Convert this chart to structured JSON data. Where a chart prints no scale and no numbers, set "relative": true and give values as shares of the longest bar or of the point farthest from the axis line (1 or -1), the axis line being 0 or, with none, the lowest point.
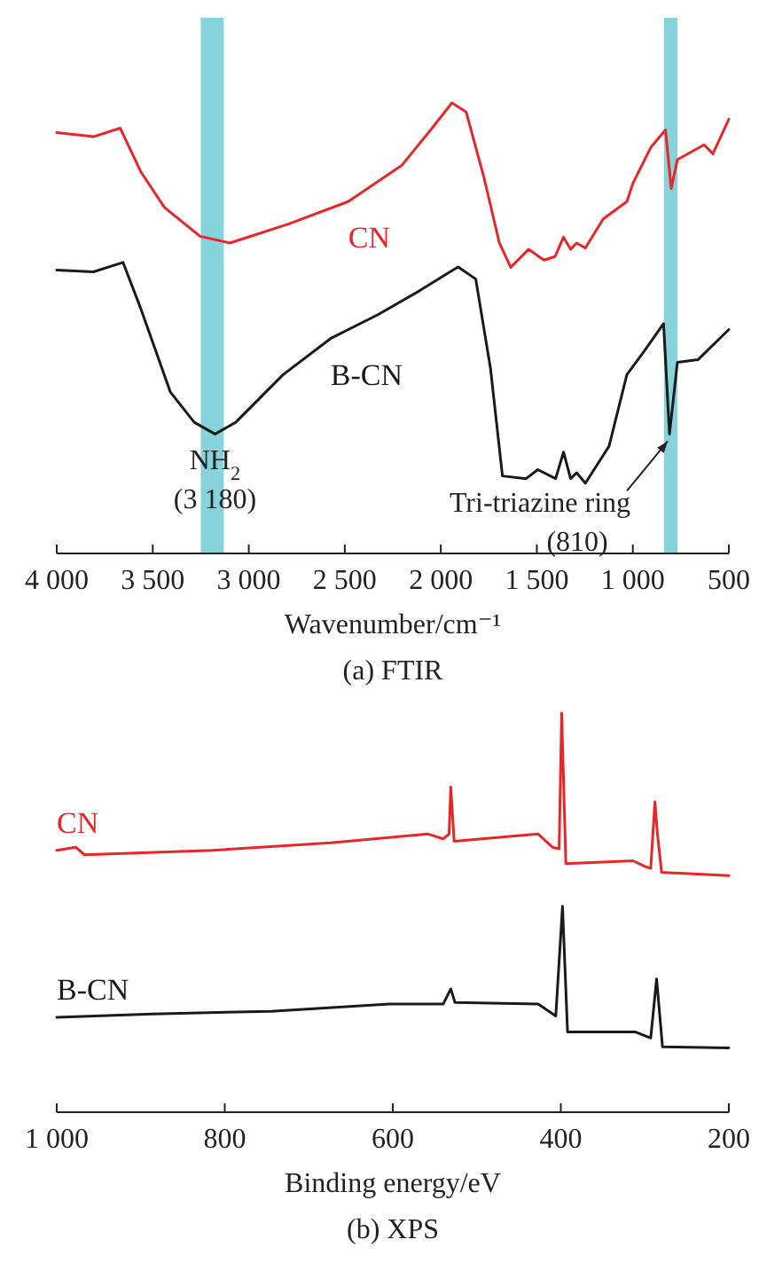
{
  "chart_data": [
    {
      "type": "line",
      "title": "(a) FTIR",
      "xlabel": "Wavenumber/cm⁻¹",
      "relative": true,
      "legend": false,
      "tick_labels": "x",
      "xlim": [
        4000,
        500
      ],
      "xticks": [
        {
          "value": 4000,
          "label": "4 000"
        },
        {
          "value": 3500,
          "label": "3 500"
        },
        {
          "value": 3000,
          "label": "3 000"
        },
        {
          "value": 2500,
          "label": "2 500"
        },
        {
          "value": 2000,
          "label": "2 000"
        },
        {
          "value": 1500,
          "label": "1 500"
        },
        {
          "value": 1000,
          "label": "1 000"
        },
        500
      ],
      "bands": [
        {
          "axis": "x",
          "from": 3250,
          "to": 3130,
          "color": "#87d3dc"
        },
        {
          "axis": "x",
          "from": 838,
          "to": 768,
          "color": "#87d3dc"
        }
      ],
      "annotations": [
        {
          "text": "NH$_{2}$\n(3 180)",
          "x": 3176,
          "y": 0.265
        },
        {
          "text": "Tri-triazine ring\n(810)",
          "x": 809,
          "y": 0.265
        }
      ],
      "series": [
        {
          "name": "CN",
          "color": "#e8262a",
          "x": [
            4000,
            3809,
            3670,
            3562,
            3439,
            3254,
            3099,
            2794,
            2482,
            2204,
            2053,
            1942,
            1868,
            1775,
            1695,
            1636,
            1543,
            1463,
            1405,
            1361,
            1324,
            1293,
            1247,
            1155,
            1031,
            1000,
            907,
            830,
            800,
            768,
            629,
            583,
            500
          ],
          "values": [
            0.934,
            0.925,
            0.944,
            0.847,
            0.768,
            0.704,
            0.689,
            0.731,
            0.781,
            0.861,
            0.94,
            1.0,
            0.98,
            0.834,
            0.689,
            0.635,
            0.675,
            0.651,
            0.659,
            0.702,
            0.675,
            0.689,
            0.678,
            0.742,
            0.781,
            0.821,
            0.901,
            0.94,
            0.81,
            0.874,
            0.907,
            0.887,
            0.964
          ]
        },
        {
          "name": "B-CN",
          "color": "#1a1a1a",
          "x": [
            4000,
            3809,
            3655,
            3562,
            3408,
            3284,
            3176,
            3068,
            2821,
            2574,
            2327,
            2111,
            1910,
            1818,
            1741,
            1679,
            1556,
            1495,
            1402,
            1361,
            1324,
            1293,
            1247,
            1124,
            1031,
            939,
            840,
            809,
            768,
            661,
            500
          ],
          "values": [
            0.629,
            0.625,
            0.646,
            0.543,
            0.358,
            0.291,
            0.265,
            0.291,
            0.397,
            0.477,
            0.53,
            0.583,
            0.636,
            0.609,
            0.41,
            0.172,
            0.166,
            0.186,
            0.166,
            0.225,
            0.166,
            0.179,
            0.156,
            0.238,
            0.397,
            0.45,
            0.51,
            0.265,
            0.424,
            0.43,
            0.497
          ]
        }
      ]
    },
    {
      "type": "line",
      "title": "(b) XPS",
      "xlabel": "Binding energy/eV",
      "relative": true,
      "legend": false,
      "tick_labels": "x",
      "xlim": [
        1000,
        200
      ],
      "xticks": [
        {
          "value": 1000,
          "label": "1 000"
        },
        800,
        600,
        400,
        200
      ],
      "series": [
        {
          "name": "CN",
          "color": "#e8262a",
          "x": [
            1000,
            977.5,
            967,
            815,
            674,
            558,
            540,
            533,
            531,
            527,
            427,
            410,
            402,
            399,
            394,
            314,
            300,
            293,
            288,
            285,
            280,
            200
          ],
          "values": [
            0.656,
            0.664,
            0.645,
            0.656,
            0.675,
            0.697,
            0.685,
            0.697,
            0.815,
            0.679,
            0.697,
            0.664,
            0.66,
            1.0,
            0.623,
            0.63,
            0.616,
            0.611,
            0.778,
            0.697,
            0.601,
            0.593
          ]
        },
        {
          "name": "B-CN",
          "color": "#1a1a1a",
          "x": [
            1000,
            886,
            745,
            604,
            540,
            531,
            526,
            427,
            406,
            398,
            392,
            311,
            293,
            286,
            279,
            200
          ],
          "values": [
            0.238,
            0.246,
            0.253,
            0.271,
            0.271,
            0.309,
            0.275,
            0.271,
            0.241,
            0.516,
            0.201,
            0.201,
            0.186,
            0.334,
            0.164,
            0.161
          ]
        }
      ]
    }
  ]
}
